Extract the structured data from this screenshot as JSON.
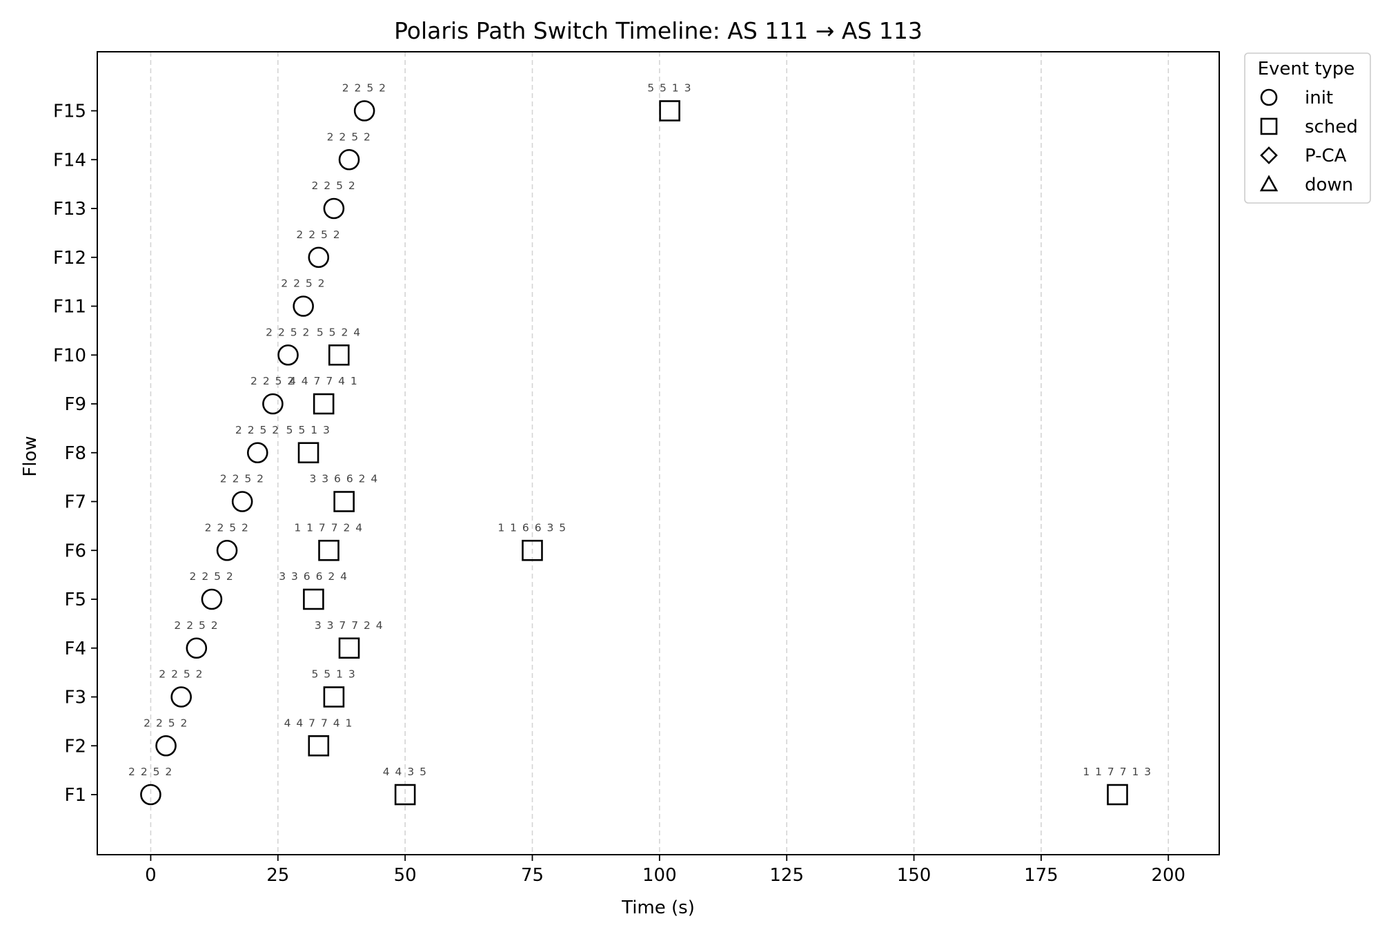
{
  "chart_data": {
    "type": "scatter",
    "title": "Polaris Path Switch Timeline: AS 111 → AS 113",
    "xlabel": "Time (s)",
    "ylabel": "Flow",
    "xlim": [
      -10.5,
      210
    ],
    "xticks": [
      0,
      25,
      50,
      75,
      100,
      125,
      150,
      175,
      200
    ],
    "grid": "x-dashed",
    "categories": [
      "F1",
      "F2",
      "F3",
      "F4",
      "F5",
      "F6",
      "F7",
      "F8",
      "F9",
      "F10",
      "F11",
      "F12",
      "F13",
      "F14",
      "F15"
    ],
    "legend": {
      "title": "Event type",
      "placement": "outside-top-right",
      "entries": [
        {
          "label": "init",
          "marker": "circle"
        },
        {
          "label": "sched",
          "marker": "square"
        },
        {
          "label": "P-CA",
          "marker": "diamond"
        },
        {
          "label": "down",
          "marker": "triangle"
        }
      ]
    },
    "series": [
      {
        "name": "init",
        "marker": "circle",
        "points": [
          {
            "flow": "F1",
            "t": 0,
            "label": "2 2 5 2"
          },
          {
            "flow": "F2",
            "t": 3,
            "label": "2 2 5 2"
          },
          {
            "flow": "F3",
            "t": 6,
            "label": "2 2 5 2"
          },
          {
            "flow": "F4",
            "t": 9,
            "label": "2 2 5 2"
          },
          {
            "flow": "F5",
            "t": 12,
            "label": "2 2 5 2"
          },
          {
            "flow": "F6",
            "t": 15,
            "label": "2 2 5 2"
          },
          {
            "flow": "F7",
            "t": 18,
            "label": "2 2 5 2"
          },
          {
            "flow": "F8",
            "t": 21,
            "label": "2 2 5 2"
          },
          {
            "flow": "F9",
            "t": 24,
            "label": "2 2 5 2"
          },
          {
            "flow": "F10",
            "t": 27,
            "label": "2 2 5 2"
          },
          {
            "flow": "F11",
            "t": 30,
            "label": "2 2 5 2"
          },
          {
            "flow": "F12",
            "t": 33,
            "label": "2 2 5 2"
          },
          {
            "flow": "F13",
            "t": 36,
            "label": "2 2 5 2"
          },
          {
            "flow": "F14",
            "t": 39,
            "label": "2 2 5 2"
          },
          {
            "flow": "F15",
            "t": 42,
            "label": "2 2 5 2"
          }
        ]
      },
      {
        "name": "sched",
        "marker": "square",
        "points": [
          {
            "flow": "F1",
            "t": 50,
            "label": "4 4 3 5"
          },
          {
            "flow": "F1",
            "t": 190,
            "label": "1 1 7 7 1 3"
          },
          {
            "flow": "F2",
            "t": 33,
            "label": "4 4 7 7 4 1"
          },
          {
            "flow": "F3",
            "t": 36,
            "label": "5 5 1 3"
          },
          {
            "flow": "F4",
            "t": 39,
            "label": "3 3 7 7 2 4"
          },
          {
            "flow": "F5",
            "t": 32,
            "label": "3 3 6 6 2 4"
          },
          {
            "flow": "F6",
            "t": 35,
            "label": "1 1 7 7 2 4"
          },
          {
            "flow": "F6",
            "t": 75,
            "label": "1 1 6 6 3 5"
          },
          {
            "flow": "F7",
            "t": 38,
            "label": "3 3 6 6 2 4"
          },
          {
            "flow": "F8",
            "t": 31,
            "label": "5 5 1 3"
          },
          {
            "flow": "F9",
            "t": 34,
            "label": "4 4 7 7 4 1"
          },
          {
            "flow": "F10",
            "t": 37,
            "label": "5 5 2 4"
          },
          {
            "flow": "F15",
            "t": 102,
            "label": "5 5 1 3"
          }
        ]
      }
    ]
  }
}
